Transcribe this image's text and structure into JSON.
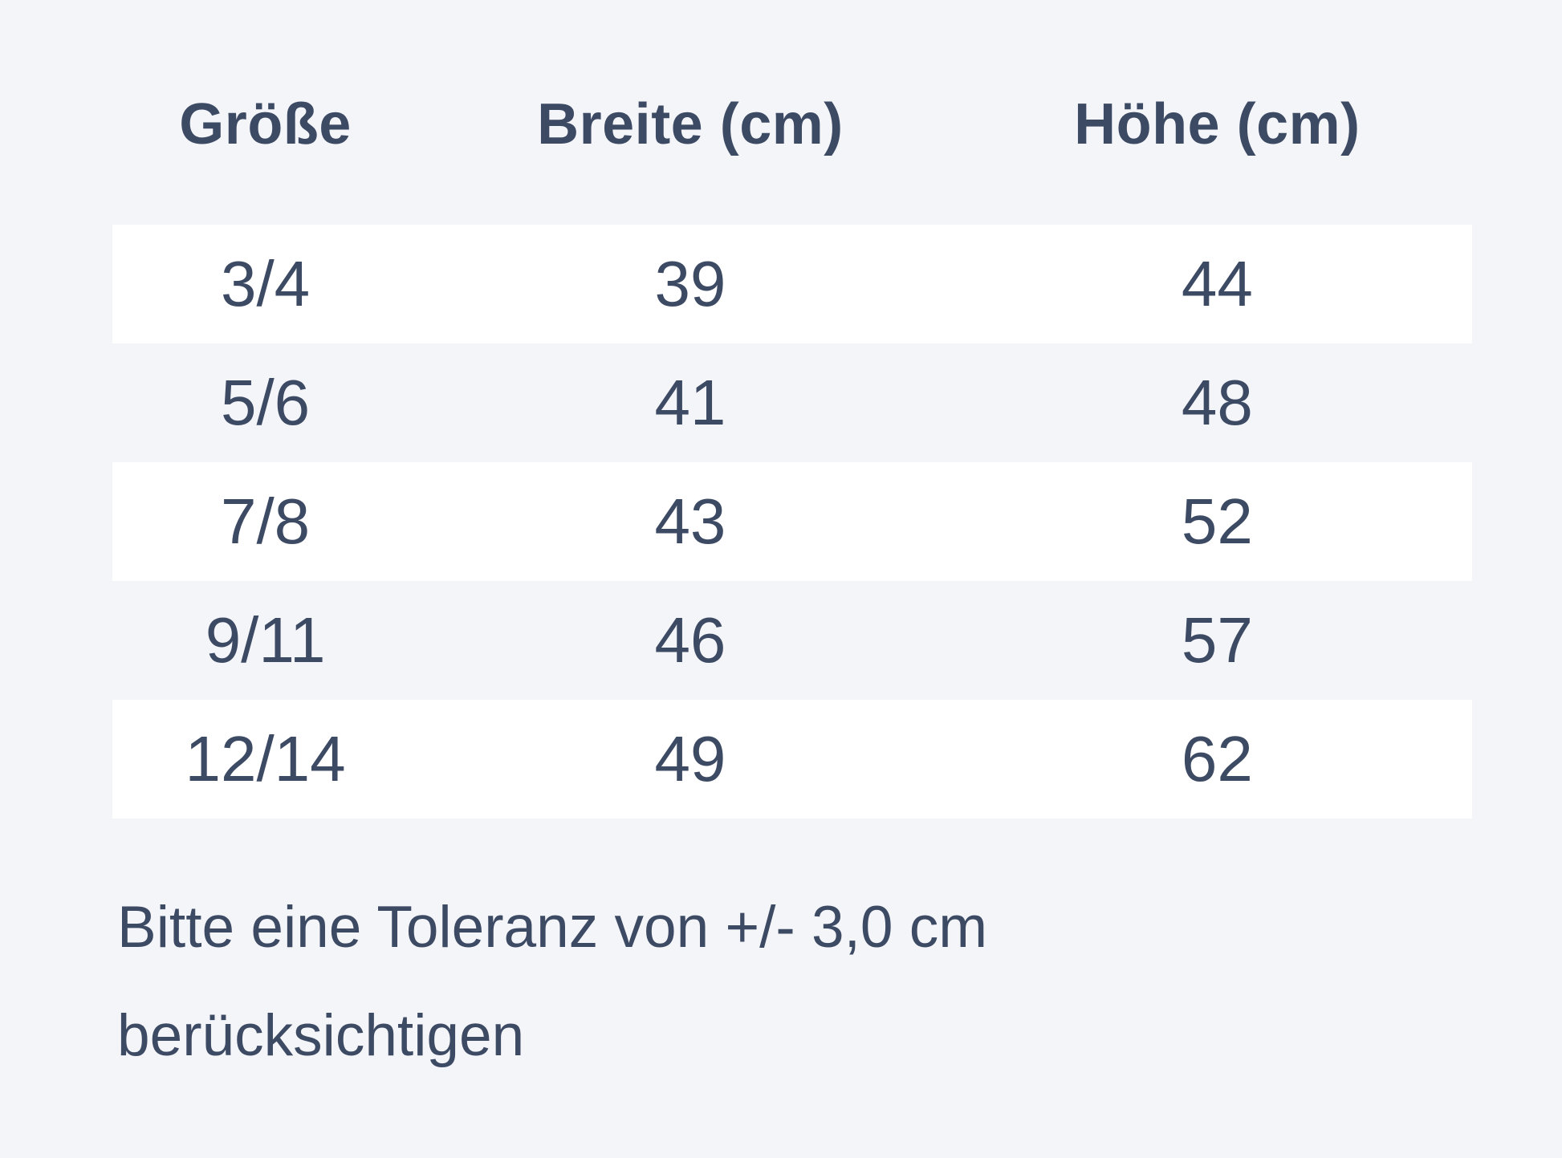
{
  "colors": {
    "page-bg": "#f4f5f9",
    "row-bg": "#ffffff",
    "text": "#3d4a64"
  },
  "table": {
    "headers": [
      "Größe",
      "Breite (cm)",
      "Höhe (cm)"
    ],
    "rows": [
      {
        "size": "3/4",
        "width": "39",
        "height": "44"
      },
      {
        "size": "5/6",
        "width": "41",
        "height": "48"
      },
      {
        "size": "7/8",
        "width": "43",
        "height": "52"
      },
      {
        "size": "9/11",
        "width": "46",
        "height": "57"
      },
      {
        "size": "12/14",
        "width": "49",
        "height": "62"
      }
    ]
  },
  "note": {
    "lines": [
      "Bitte eine Toleranz von +/- 3,0 cm",
      "berücksichtigen"
    ]
  }
}
